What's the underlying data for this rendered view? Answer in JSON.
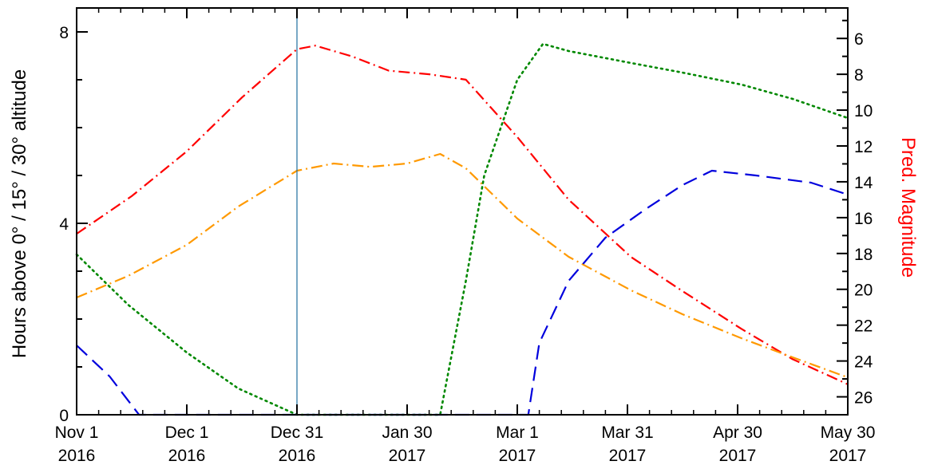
{
  "chart_data": {
    "type": "line",
    "xlabel": "",
    "ylabel_left": "Hours above  0° / 15° / 30° altitude",
    "ylabel_right": "Pred. Magnitude",
    "x_tick_labels": [
      {
        "date": "2016-11-01",
        "line1": "Nov  1",
        "line2": "2016"
      },
      {
        "date": "2016-12-01",
        "line1": "Dec  1",
        "line2": "2016"
      },
      {
        "date": "2016-12-31",
        "line1": "Dec 31",
        "line2": "2016"
      },
      {
        "date": "2017-01-30",
        "line1": "Jan 30",
        "line2": "2017"
      },
      {
        "date": "2017-03-01",
        "line1": "Mar  1",
        "line2": "2017"
      },
      {
        "date": "2017-03-31",
        "line1": "Mar 31",
        "line2": "2017"
      },
      {
        "date": "2017-04-30",
        "line1": "Apr 30",
        "line2": "2017"
      },
      {
        "date": "2017-05-30",
        "line1": "May 30",
        "line2": "2017"
      }
    ],
    "xlim": [
      "2016-11-01",
      "2017-05-30"
    ],
    "ylim_left": [
      0,
      8.5
    ],
    "ylim_right": [
      27,
      4.3
    ],
    "left_ticks": [
      0,
      4,
      8
    ],
    "right_ticks": [
      6,
      8,
      10,
      12,
      14,
      16,
      18,
      20,
      22,
      24,
      26
    ],
    "grid": false,
    "current_date_marker": "2016-12-31",
    "series": [
      {
        "axis": "right",
        "color": "#ff0000",
        "dash": "dash-dot",
        "points": [
          [
            "2016-11-01",
            16.9
          ],
          [
            "2016-11-16",
            14.8
          ],
          [
            "2016-12-01",
            12.3
          ],
          [
            "2016-12-16",
            9.3
          ],
          [
            "2016-12-31",
            6.6
          ],
          [
            "2017-01-05",
            6.4
          ],
          [
            "2017-01-15",
            7.0
          ],
          [
            "2017-01-25",
            7.8
          ],
          [
            "2017-02-05",
            8.0
          ],
          [
            "2017-02-15",
            8.3
          ],
          [
            "2017-03-01",
            11.5
          ],
          [
            "2017-03-15",
            15.0
          ],
          [
            "2017-04-01",
            18.2
          ],
          [
            "2017-04-15",
            20.1
          ],
          [
            "2017-05-01",
            22.2
          ],
          [
            "2017-05-15",
            23.9
          ],
          [
            "2017-05-30",
            25.3
          ]
        ]
      },
      {
        "axis": "left",
        "color": "#ff9900",
        "dash": "dash-dot",
        "points": [
          [
            "2016-11-01",
            2.45
          ],
          [
            "2016-11-15",
            2.9
          ],
          [
            "2016-12-01",
            3.55
          ],
          [
            "2016-12-15",
            4.35
          ],
          [
            "2016-12-31",
            5.1
          ],
          [
            "2017-01-10",
            5.25
          ],
          [
            "2017-01-20",
            5.18
          ],
          [
            "2017-01-30",
            5.25
          ],
          [
            "2017-02-08",
            5.45
          ],
          [
            "2017-02-15",
            5.15
          ],
          [
            "2017-03-01",
            4.1
          ],
          [
            "2017-03-15",
            3.3
          ],
          [
            "2017-04-01",
            2.6
          ],
          [
            "2017-04-15",
            2.1
          ],
          [
            "2017-05-01",
            1.6
          ],
          [
            "2017-05-15",
            1.2
          ],
          [
            "2017-05-30",
            0.78
          ]
        ]
      },
      {
        "axis": "left",
        "color": "#008800",
        "dash": "dotted",
        "points": [
          [
            "2016-11-01",
            3.35
          ],
          [
            "2016-11-15",
            2.3
          ],
          [
            "2016-12-01",
            1.3
          ],
          [
            "2016-12-15",
            0.55
          ],
          [
            "2016-12-31",
            0.0
          ],
          [
            "2017-02-08",
            0.0
          ],
          [
            "2017-02-15",
            2.8
          ],
          [
            "2017-02-20",
            5.0
          ],
          [
            "2017-03-01",
            7.0
          ],
          [
            "2017-03-08",
            7.75
          ],
          [
            "2017-03-15",
            7.6
          ],
          [
            "2017-04-01",
            7.35
          ],
          [
            "2017-04-15",
            7.15
          ],
          [
            "2017-05-01",
            6.9
          ],
          [
            "2017-05-15",
            6.6
          ],
          [
            "2017-05-30",
            6.2
          ]
        ]
      },
      {
        "axis": "left",
        "color": "#0000dd",
        "dash": "dashed",
        "points": [
          [
            "2016-11-01",
            1.45
          ],
          [
            "2016-11-10",
            0.8
          ],
          [
            "2016-11-18",
            0.0
          ],
          [
            "2017-03-04",
            0.0
          ],
          [
            "2017-03-07",
            1.5
          ],
          [
            "2017-03-15",
            2.8
          ],
          [
            "2017-03-25",
            3.7
          ],
          [
            "2017-04-05",
            4.3
          ],
          [
            "2017-04-15",
            4.8
          ],
          [
            "2017-04-23",
            5.1
          ],
          [
            "2017-05-05",
            5.0
          ],
          [
            "2017-05-20",
            4.85
          ],
          [
            "2017-05-30",
            4.6
          ]
        ]
      }
    ]
  }
}
